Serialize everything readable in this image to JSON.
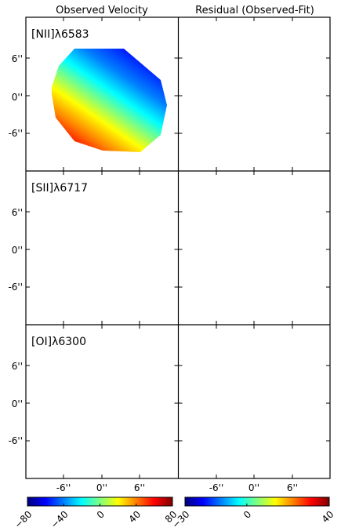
{
  "figure": {
    "column_titles": [
      "Observed Velocity",
      "Residual (Observed-Fit)"
    ],
    "row_labels": [
      "[NII]λ6583",
      "[SII]λ6717",
      "[OI]λ6300"
    ],
    "y_ticks": [
      "6''",
      "0''",
      "-6''"
    ],
    "x_ticks": [
      "-6''",
      "0''",
      "6''"
    ],
    "colormap": "jet",
    "colormap_stops": [
      "#00007f",
      "#0000ff",
      "#007fff",
      "#00ffff",
      "#7fff7f",
      "#ffff00",
      "#ff7f00",
      "#ff0000",
      "#7f0000"
    ]
  },
  "colorbars": [
    {
      "range": [
        -80,
        80
      ],
      "ticks": [
        "−80",
        "−40",
        "0",
        "40",
        "80"
      ],
      "tick_values": [
        -80,
        -40,
        0,
        40,
        80
      ]
    },
    {
      "range": [
        -30,
        40
      ],
      "ticks": [
        "−30",
        "0",
        "40"
      ],
      "tick_values": [
        -30,
        0,
        40
      ]
    }
  ]
}
